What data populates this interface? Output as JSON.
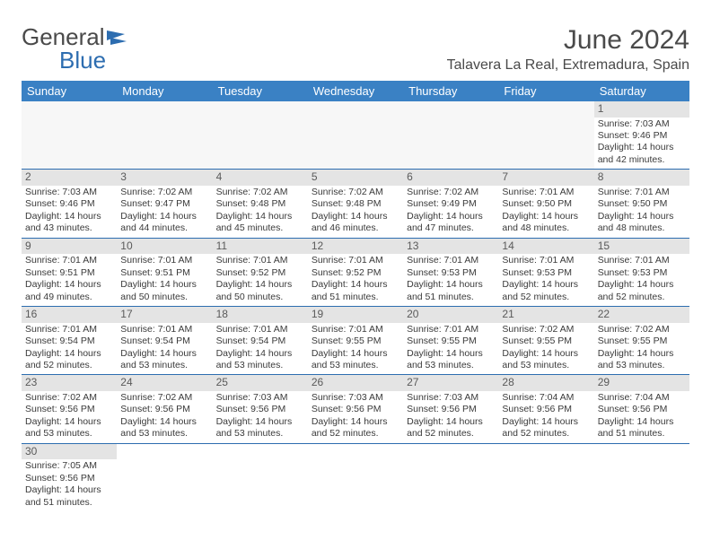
{
  "logo": {
    "text_general": "General",
    "text_blue": "Blue"
  },
  "title": "June 2024",
  "location": "Talavera La Real, Extremadura, Spain",
  "colors": {
    "header_bg": "#3a81c4",
    "border": "#2d6db0",
    "daynum_bg": "#e4e4e4",
    "text": "#4a4a4a"
  },
  "day_headers": [
    "Sunday",
    "Monday",
    "Tuesday",
    "Wednesday",
    "Thursday",
    "Friday",
    "Saturday"
  ],
  "weeks": [
    [
      null,
      null,
      null,
      null,
      null,
      null,
      {
        "n": "1",
        "sr": "7:03 AM",
        "ss": "9:46 PM",
        "dl": "14 hours and 42 minutes."
      }
    ],
    [
      {
        "n": "2",
        "sr": "7:03 AM",
        "ss": "9:46 PM",
        "dl": "14 hours and 43 minutes."
      },
      {
        "n": "3",
        "sr": "7:02 AM",
        "ss": "9:47 PM",
        "dl": "14 hours and 44 minutes."
      },
      {
        "n": "4",
        "sr": "7:02 AM",
        "ss": "9:48 PM",
        "dl": "14 hours and 45 minutes."
      },
      {
        "n": "5",
        "sr": "7:02 AM",
        "ss": "9:48 PM",
        "dl": "14 hours and 46 minutes."
      },
      {
        "n": "6",
        "sr": "7:02 AM",
        "ss": "9:49 PM",
        "dl": "14 hours and 47 minutes."
      },
      {
        "n": "7",
        "sr": "7:01 AM",
        "ss": "9:50 PM",
        "dl": "14 hours and 48 minutes."
      },
      {
        "n": "8",
        "sr": "7:01 AM",
        "ss": "9:50 PM",
        "dl": "14 hours and 48 minutes."
      }
    ],
    [
      {
        "n": "9",
        "sr": "7:01 AM",
        "ss": "9:51 PM",
        "dl": "14 hours and 49 minutes."
      },
      {
        "n": "10",
        "sr": "7:01 AM",
        "ss": "9:51 PM",
        "dl": "14 hours and 50 minutes."
      },
      {
        "n": "11",
        "sr": "7:01 AM",
        "ss": "9:52 PM",
        "dl": "14 hours and 50 minutes."
      },
      {
        "n": "12",
        "sr": "7:01 AM",
        "ss": "9:52 PM",
        "dl": "14 hours and 51 minutes."
      },
      {
        "n": "13",
        "sr": "7:01 AM",
        "ss": "9:53 PM",
        "dl": "14 hours and 51 minutes."
      },
      {
        "n": "14",
        "sr": "7:01 AM",
        "ss": "9:53 PM",
        "dl": "14 hours and 52 minutes."
      },
      {
        "n": "15",
        "sr": "7:01 AM",
        "ss": "9:53 PM",
        "dl": "14 hours and 52 minutes."
      }
    ],
    [
      {
        "n": "16",
        "sr": "7:01 AM",
        "ss": "9:54 PM",
        "dl": "14 hours and 52 minutes."
      },
      {
        "n": "17",
        "sr": "7:01 AM",
        "ss": "9:54 PM",
        "dl": "14 hours and 53 minutes."
      },
      {
        "n": "18",
        "sr": "7:01 AM",
        "ss": "9:54 PM",
        "dl": "14 hours and 53 minutes."
      },
      {
        "n": "19",
        "sr": "7:01 AM",
        "ss": "9:55 PM",
        "dl": "14 hours and 53 minutes."
      },
      {
        "n": "20",
        "sr": "7:01 AM",
        "ss": "9:55 PM",
        "dl": "14 hours and 53 minutes."
      },
      {
        "n": "21",
        "sr": "7:02 AM",
        "ss": "9:55 PM",
        "dl": "14 hours and 53 minutes."
      },
      {
        "n": "22",
        "sr": "7:02 AM",
        "ss": "9:55 PM",
        "dl": "14 hours and 53 minutes."
      }
    ],
    [
      {
        "n": "23",
        "sr": "7:02 AM",
        "ss": "9:56 PM",
        "dl": "14 hours and 53 minutes."
      },
      {
        "n": "24",
        "sr": "7:02 AM",
        "ss": "9:56 PM",
        "dl": "14 hours and 53 minutes."
      },
      {
        "n": "25",
        "sr": "7:03 AM",
        "ss": "9:56 PM",
        "dl": "14 hours and 53 minutes."
      },
      {
        "n": "26",
        "sr": "7:03 AM",
        "ss": "9:56 PM",
        "dl": "14 hours and 52 minutes."
      },
      {
        "n": "27",
        "sr": "7:03 AM",
        "ss": "9:56 PM",
        "dl": "14 hours and 52 minutes."
      },
      {
        "n": "28",
        "sr": "7:04 AM",
        "ss": "9:56 PM",
        "dl": "14 hours and 52 minutes."
      },
      {
        "n": "29",
        "sr": "7:04 AM",
        "ss": "9:56 PM",
        "dl": "14 hours and 51 minutes."
      }
    ],
    [
      {
        "n": "30",
        "sr": "7:05 AM",
        "ss": "9:56 PM",
        "dl": "14 hours and 51 minutes."
      },
      null,
      null,
      null,
      null,
      null,
      null
    ]
  ],
  "labels": {
    "sunrise": "Sunrise:",
    "sunset": "Sunset:",
    "daylight": "Daylight:"
  }
}
